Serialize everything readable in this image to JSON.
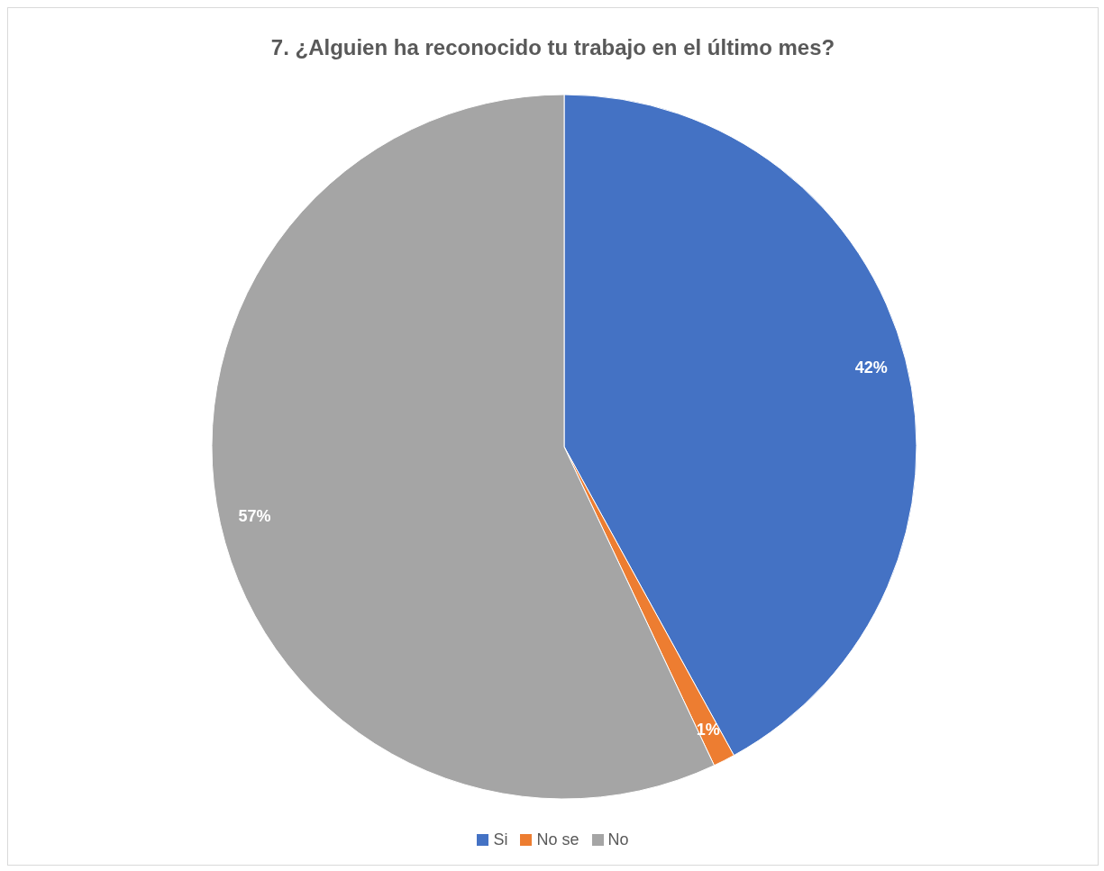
{
  "chart_data": {
    "type": "pie",
    "title": "7. ¿Alguien ha reconocido tu trabajo en el último mes?",
    "categories": [
      "Si",
      "No se",
      "No"
    ],
    "values": [
      42,
      1,
      57
    ],
    "colors": [
      "#4472c4",
      "#ed7d31",
      "#a5a5a5"
    ],
    "value_labels": [
      "42%",
      "1%",
      "57%"
    ],
    "legend": "bottom"
  }
}
